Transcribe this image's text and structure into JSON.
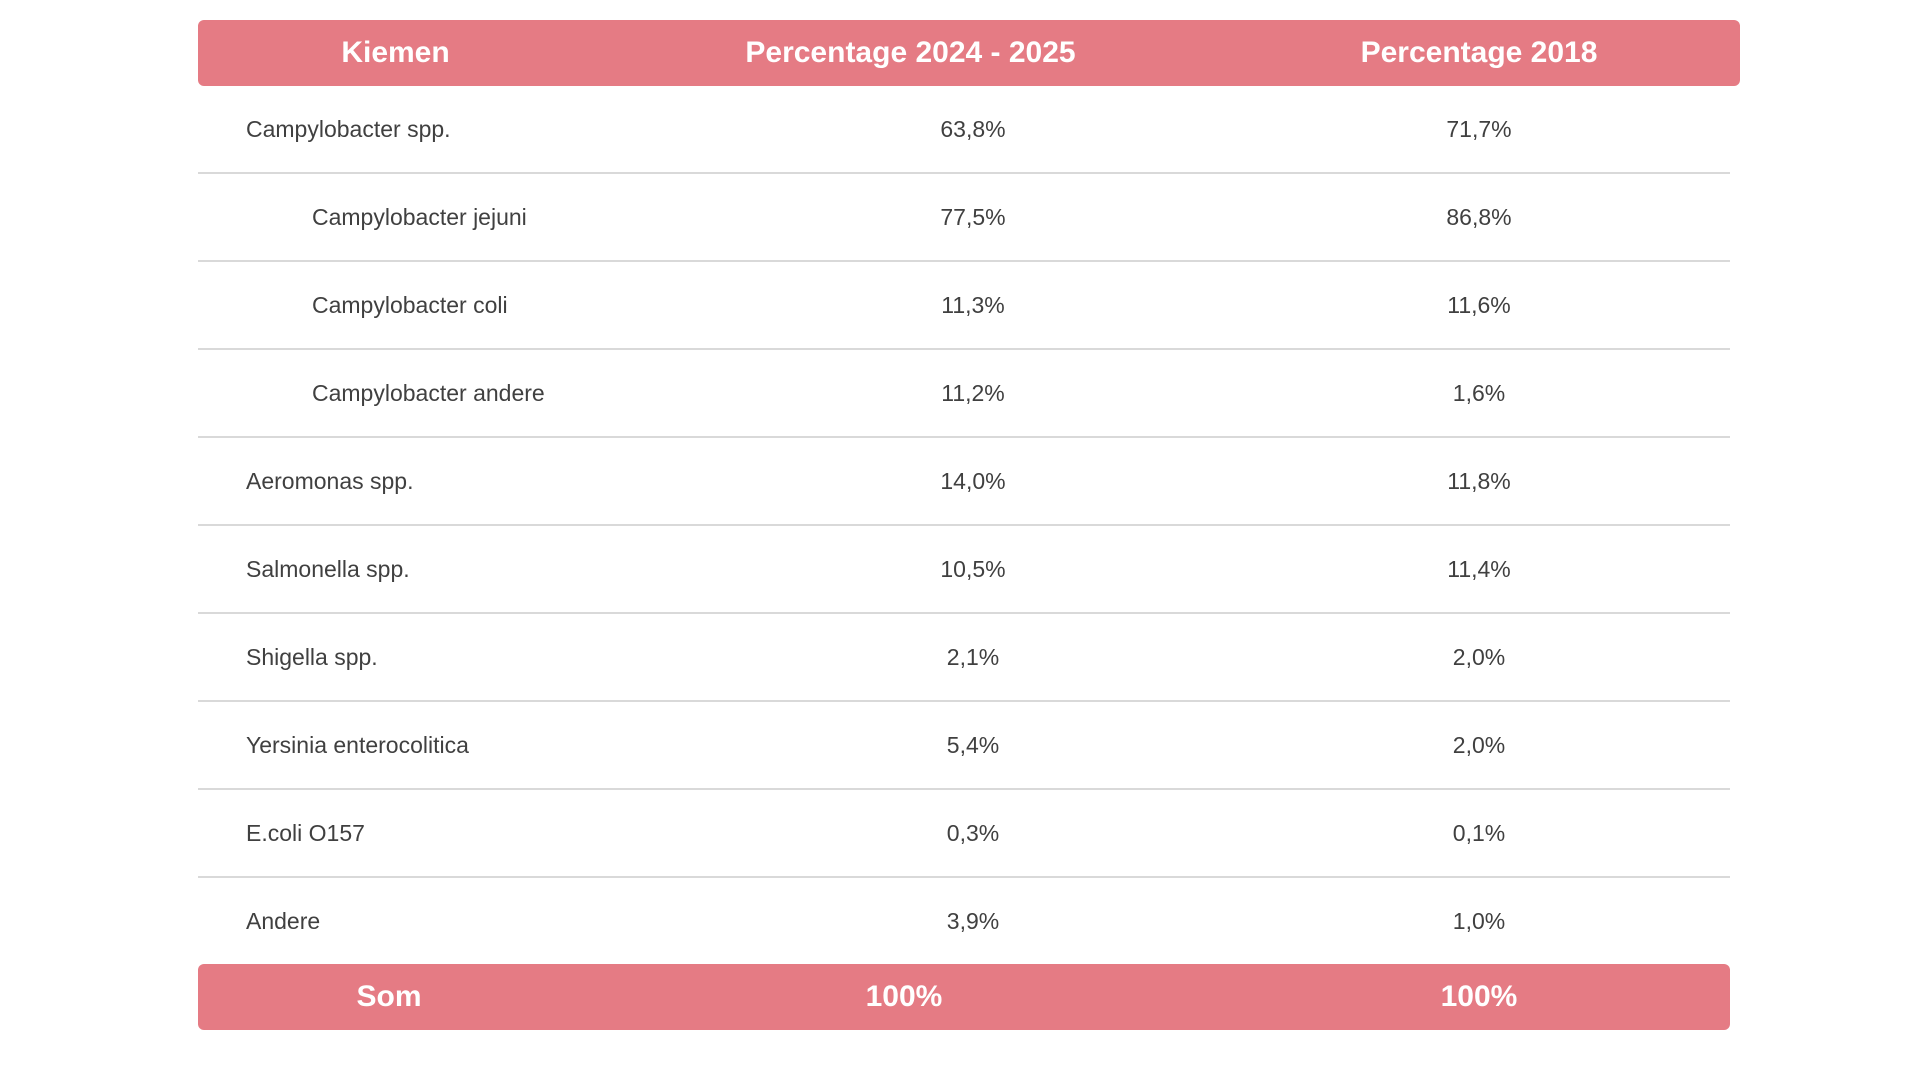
{
  "colors": {
    "header_bg": "#e57b84",
    "row_divider": "#d9d9d9",
    "body_text": "#404040"
  },
  "table": {
    "headers": [
      "Kiemen",
      "Percentage 2024 - 2025",
      "Percentage 2018"
    ],
    "rows": [
      {
        "label": "Campylobacter spp.",
        "p2024": "63,8%",
        "p2018": "71,7%",
        "sub": false
      },
      {
        "label": "Campylobacter jejuni",
        "p2024": "77,5%",
        "p2018": "86,8%",
        "sub": true
      },
      {
        "label": "Campylobacter coli",
        "p2024": "11,3%",
        "p2018": "11,6%",
        "sub": true
      },
      {
        "label": "Campylobacter andere",
        "p2024": "11,2%",
        "p2018": "1,6%",
        "sub": true
      },
      {
        "label": "Aeromonas spp.",
        "p2024": "14,0%",
        "p2018": "11,8%",
        "sub": false
      },
      {
        "label": "Salmonella spp.",
        "p2024": "10,5%",
        "p2018": "11,4%",
        "sub": false
      },
      {
        "label": "Shigella spp.",
        "p2024": "2,1%",
        "p2018": "2,0%",
        "sub": false
      },
      {
        "label": "Yersinia enterocolitica",
        "p2024": "5,4%",
        "p2018": "2,0%",
        "sub": false
      },
      {
        "label": "E.coli O157",
        "p2024": "0,3%",
        "p2018": "0,1%",
        "sub": false
      },
      {
        "label": "Andere",
        "p2024": "3,9%",
        "p2018": "1,0%",
        "sub": false
      }
    ],
    "footer": {
      "label": "Som",
      "p2024": "100%",
      "p2018": "100%"
    }
  }
}
